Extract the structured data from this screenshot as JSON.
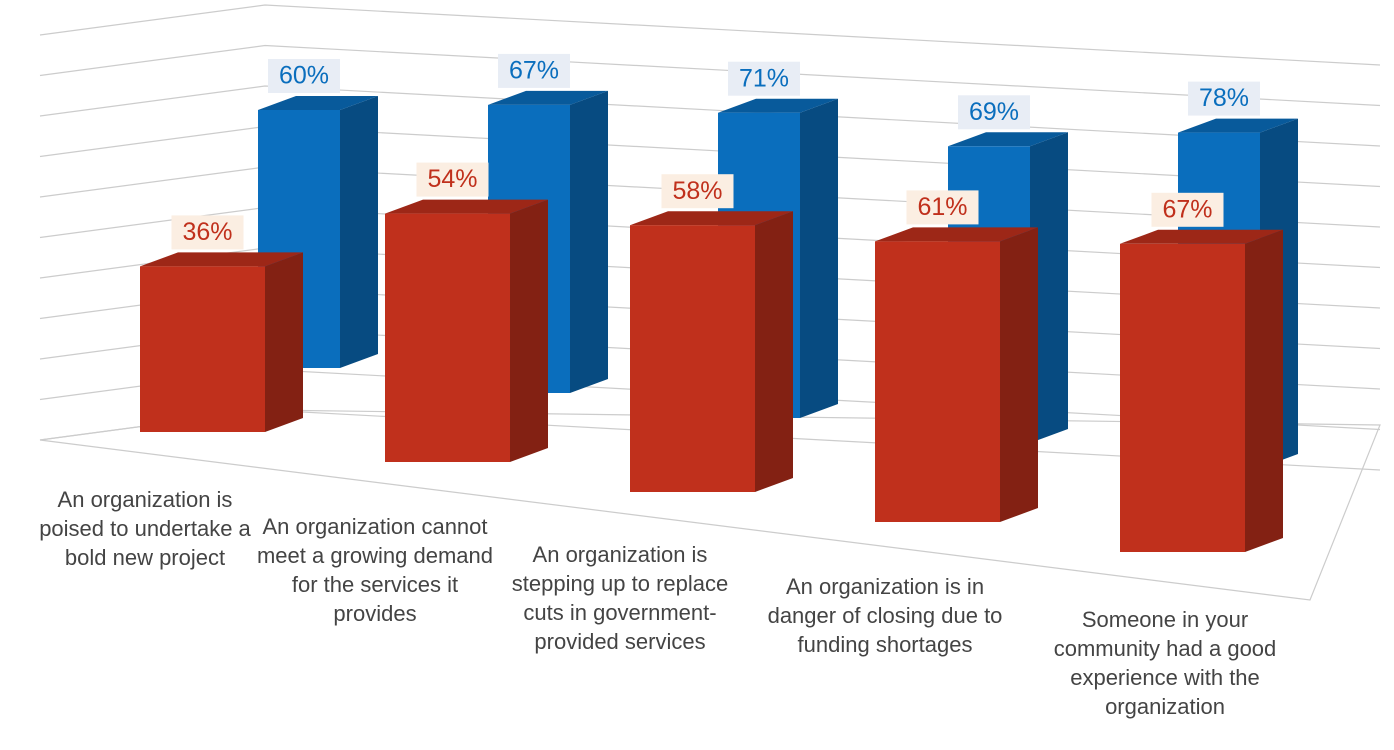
{
  "chart_data": {
    "type": "bar3d",
    "categories": [
      "An organization is poised to undertake a bold new project",
      "An organization cannot meet a growing demand for the services it provides",
      "An organization is stepping up to replace cuts in government-provided services",
      "An organization is in danger of closing due to funding shortages",
      "Someone in your community had a good experience with the organization"
    ],
    "series": [
      {
        "color": "#0a6ebd",
        "values": [
          60,
          67,
          71,
          69,
          78
        ],
        "value_labels": [
          "60%",
          "67%",
          "71%",
          "69%",
          "78%"
        ]
      },
      {
        "color": "#c0301c",
        "values": [
          36,
          54,
          58,
          61,
          67
        ],
        "value_labels": [
          "36%",
          "54%",
          "58%",
          "61%",
          "67%"
        ]
      }
    ],
    "ylim": [
      0,
      100
    ],
    "yticks": [
      0,
      10,
      20,
      30,
      40,
      50,
      60,
      70,
      80,
      90,
      100
    ],
    "grid": true
  }
}
